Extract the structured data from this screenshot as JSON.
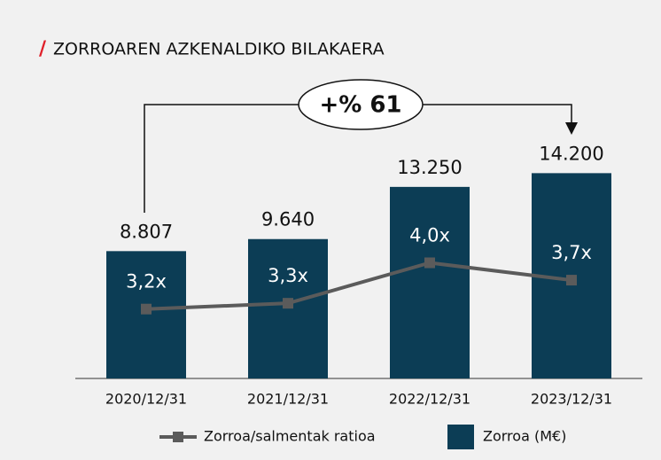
{
  "chart_data": {
    "type": "bar",
    "title": "ZORROAREN AZKENALDIKO BILAKAERA",
    "annotation": "+% 61",
    "categories": [
      "2020/12/31",
      "2021/12/31",
      "2022/12/31",
      "2023/12/31"
    ],
    "series": [
      {
        "name": "Zorroa/salmentak ratioa",
        "type": "line",
        "axis": "y2",
        "color": "#5b5b5b",
        "values": [
          3.2,
          3.3,
          4.0,
          3.7
        ],
        "value_labels": [
          "3,2x",
          "3,3x",
          "4,0x",
          "3,7x"
        ]
      },
      {
        "name": "Zorroa (M€)",
        "type": "bar",
        "color": "#0c3d55",
        "values": [
          8807,
          9640,
          13250,
          14200
        ],
        "value_labels": [
          "8.807",
          "9.640",
          "13.250",
          "14.200"
        ]
      }
    ],
    "ylim": [
      0,
      16000
    ],
    "y2lim": [
      2,
      6
    ],
    "legend": "bottom"
  }
}
